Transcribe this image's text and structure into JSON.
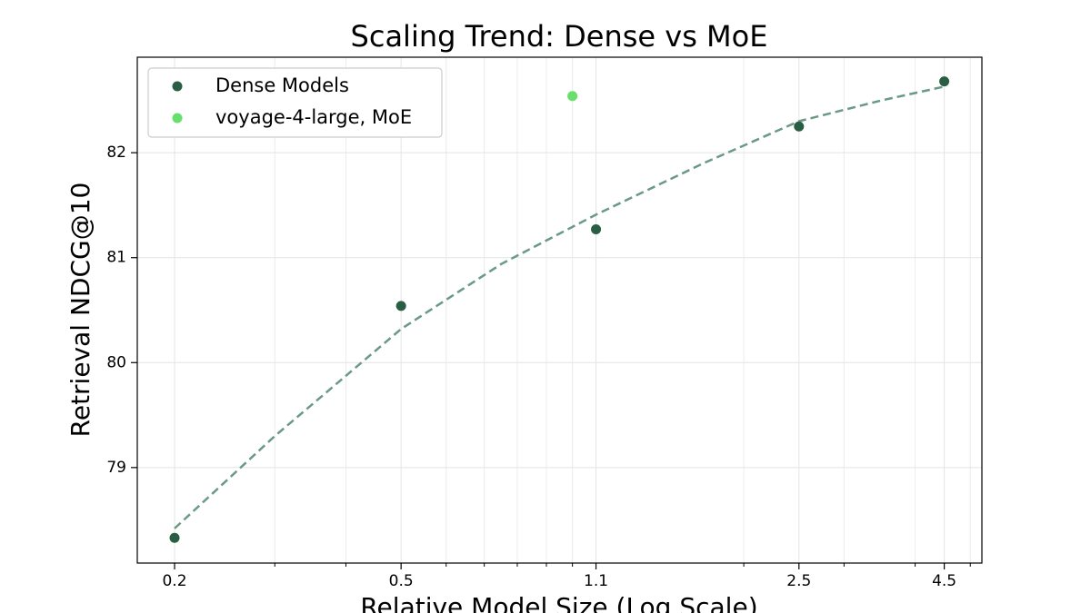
{
  "chart_data": {
    "type": "scatter",
    "title": "Scaling Trend: Dense vs MoE",
    "x_label": "Relative Model Size (Log Scale)",
    "y_label": "Retrieval NDCG@10",
    "xscale": "log",
    "xlim": [
      0.172,
      5.24
    ],
    "ylim": [
      78.09,
      82.91
    ],
    "xticks": [
      0.2,
      0.5,
      1.1,
      2.5,
      4.5
    ],
    "x_minor_ticks": [
      0.3,
      0.4,
      0.6,
      0.7,
      0.8,
      0.9,
      1,
      2,
      3,
      4,
      5
    ],
    "yticks": [
      79,
      80,
      81,
      82
    ],
    "grid": true,
    "legend": "upper left",
    "series": [
      {
        "name": "Dense Models",
        "color": "#2a5e44",
        "x": [
          0.2,
          0.5,
          1.1,
          2.5,
          4.5
        ],
        "values": [
          78.33,
          80.54,
          81.27,
          82.25,
          82.68
        ]
      },
      {
        "name": "voyage-4-large, MoE",
        "color": "#66e06a",
        "x": [
          1.0
        ],
        "values": [
          82.54
        ]
      }
    ],
    "trend": {
      "color": "#6a9a86",
      "style": "dashed",
      "x": [
        0.2,
        0.3,
        0.5,
        0.75,
        1.1,
        1.7,
        2.5,
        3.5,
        4.5
      ],
      "values": [
        78.42,
        79.3,
        80.32,
        80.94,
        81.41,
        81.9,
        82.3,
        82.5,
        82.63
      ]
    }
  }
}
